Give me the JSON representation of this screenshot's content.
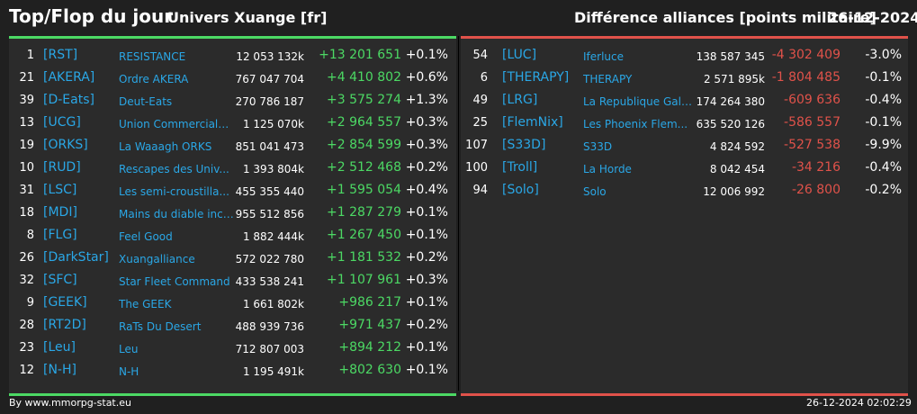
{
  "header": {
    "title": "Top/Flop du jour",
    "subtitle": "Univers Xuange [fr]",
    "right_title": "Différence alliances [points militaire]",
    "date": "26-12-2024"
  },
  "colors": {
    "positive": "#4cd964",
    "negative": "#e0524a",
    "link": "#2aa7e6",
    "background": "#202020",
    "panel": "#2b2b2b"
  },
  "top": [
    {
      "rank": "1",
      "tag": "[RST]",
      "name": "RESISTANCE",
      "points": "12 053 132k",
      "diff": "+13 201 651",
      "pct": "+0.1%"
    },
    {
      "rank": "21",
      "tag": "[AKERA]",
      "name": "Ordre AKERA",
      "points": "767 047 704",
      "diff": "+4 410 802",
      "pct": "+0.6%"
    },
    {
      "rank": "39",
      "tag": "[D-Eats]",
      "name": "Deut-Eats",
      "points": "270 786 187",
      "diff": "+3 575 274",
      "pct": "+1.3%"
    },
    {
      "rank": "13",
      "tag": "[UCG]",
      "name": "Union Commerciale...",
      "points": "1 125 070k",
      "diff": "+2 964 557",
      "pct": "+0.3%"
    },
    {
      "rank": "19",
      "tag": "[ORKS]",
      "name": "La Waaagh ORKS",
      "points": "851 041 473",
      "diff": "+2 854 599",
      "pct": "+0.3%"
    },
    {
      "rank": "10",
      "tag": "[RUD]",
      "name": "Rescapes des Univ...",
      "points": "1 393 804k",
      "diff": "+2 512 468",
      "pct": "+0.2%"
    },
    {
      "rank": "31",
      "tag": "[LSC]",
      "name": "Les semi-croustilla...",
      "points": "455 355 440",
      "diff": "+1 595 054",
      "pct": "+0.4%"
    },
    {
      "rank": "18",
      "tag": "[MDI]",
      "name": "Mains du diable inco...",
      "points": "955 512 856",
      "diff": "+1 287 279",
      "pct": "+0.1%"
    },
    {
      "rank": "8",
      "tag": "[FLG]",
      "name": "Feel Good",
      "points": "1 882 444k",
      "diff": "+1 267 450",
      "pct": "+0.1%"
    },
    {
      "rank": "26",
      "tag": "[DarkStar]",
      "name": "Xuangalliance",
      "points": "572 022 780",
      "diff": "+1 181 532",
      "pct": "+0.2%"
    },
    {
      "rank": "32",
      "tag": "[SFC]",
      "name": "Star Fleet Command",
      "points": "433 538 241",
      "diff": "+1 107 961",
      "pct": "+0.3%"
    },
    {
      "rank": "9",
      "tag": "[GEEK]",
      "name": "The GEEK",
      "points": "1 661 802k",
      "diff": "+986 217",
      "pct": "+0.1%"
    },
    {
      "rank": "28",
      "tag": "[RT2D]",
      "name": "RaTs Du Desert",
      "points": "488 939 736",
      "diff": "+971 437",
      "pct": "+0.2%"
    },
    {
      "rank": "23",
      "tag": "[Leu]",
      "name": "Leu",
      "points": "712 807 003",
      "diff": "+894 212",
      "pct": "+0.1%"
    },
    {
      "rank": "12",
      "tag": "[N-H]",
      "name": "N-H",
      "points": "1 195 491k",
      "diff": "+802 630",
      "pct": "+0.1%"
    }
  ],
  "flop": [
    {
      "rank": "54",
      "tag": "[LUC]",
      "name": "Iferluce",
      "points": "138 587 345",
      "diff": "-4 302 409",
      "pct": "-3.0%"
    },
    {
      "rank": "6",
      "tag": "[THERAPY]",
      "name": "THERAPY",
      "points": "2 571 895k",
      "diff": "-1 804 485",
      "pct": "-0.1%"
    },
    {
      "rank": "49",
      "tag": "[LRG]",
      "name": "La Republique Gala...",
      "points": "174 264 380",
      "diff": "-609 636",
      "pct": "-0.4%"
    },
    {
      "rank": "25",
      "tag": "[FlemNix]",
      "name": "Les Phoenix Flem...",
      "points": "635 520 126",
      "diff": "-586 557",
      "pct": "-0.1%"
    },
    {
      "rank": "107",
      "tag": "[S33D]",
      "name": "S33D",
      "points": "4 824 592",
      "diff": "-527 538",
      "pct": "-9.9%"
    },
    {
      "rank": "100",
      "tag": "[Troll]",
      "name": "La Horde",
      "points": "8 042 454",
      "diff": "-34 216",
      "pct": "-0.4%"
    },
    {
      "rank": "94",
      "tag": "[Solo]",
      "name": "Solo",
      "points": "12 006 992",
      "diff": "-26 800",
      "pct": "-0.2%"
    }
  ],
  "footer": {
    "credit": "By www.mmorpg-stat.eu",
    "timestamp": "26-12-2024 02:02:29"
  }
}
